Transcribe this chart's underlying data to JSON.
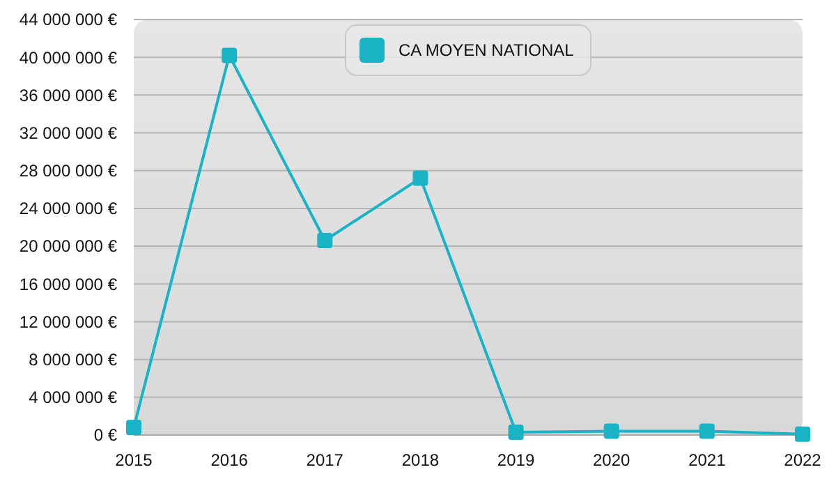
{
  "chart_data": {
    "type": "line",
    "categories": [
      "2015",
      "2016",
      "2017",
      "2018",
      "2019",
      "2020",
      "2021",
      "2022"
    ],
    "series": [
      {
        "name": "CA MOYEN NATIONAL",
        "color": "#1ab3c6",
        "values": [
          800000,
          40200000,
          20600000,
          27200000,
          300000,
          400000,
          400000,
          100000
        ]
      }
    ],
    "ylim": [
      0,
      44000000
    ],
    "yticks": [
      {
        "value": 0,
        "label": "0 €"
      },
      {
        "value": 4000000,
        "label": "4 000 000 €"
      },
      {
        "value": 8000000,
        "label": "8 000 000 €"
      },
      {
        "value": 12000000,
        "label": "12 000 000 €"
      },
      {
        "value": 16000000,
        "label": "16 000 000 €"
      },
      {
        "value": 20000000,
        "label": "20 000 000 €"
      },
      {
        "value": 24000000,
        "label": "24 000 000 €"
      },
      {
        "value": 28000000,
        "label": "28 000 000 €"
      },
      {
        "value": 32000000,
        "label": "32 000 000 €"
      },
      {
        "value": 36000000,
        "label": "36 000 000 €"
      },
      {
        "value": 40000000,
        "label": "40 000 000 €"
      },
      {
        "value": 44000000,
        "label": "44 000 000 €"
      }
    ],
    "grid": "y",
    "legend": "top",
    "marker": "square",
    "line_style": "solid"
  }
}
